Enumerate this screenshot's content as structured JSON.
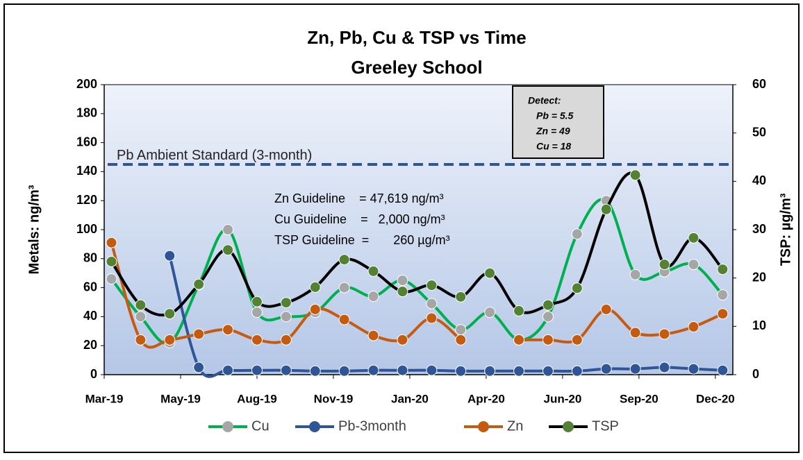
{
  "chart_data": {
    "type": "line",
    "title": "Zn, Pb, Cu & TSP vs Time",
    "subtitle": "Greeley School",
    "y_label": "Metals:  ng/m³",
    "y2_label": "TSP:  µg/m³",
    "x": [
      0.25,
      1.25,
      2.25,
      3.25,
      4.25,
      5.25,
      6.25,
      7.25,
      8.25,
      9.25,
      10.25,
      11.25,
      12.25,
      13.25,
      14.25,
      15.25,
      16.25,
      17.25,
      18.25,
      19.25,
      20.25,
      21.25
    ],
    "xlim": [
      0,
      21.6
    ],
    "xticks": [
      {
        "value": 0,
        "label": "Mar-19"
      },
      {
        "value": 2.625,
        "label": "May-19"
      },
      {
        "value": 5.25,
        "label": "Aug-19"
      },
      {
        "value": 7.875,
        "label": "Nov-19"
      },
      {
        "value": 10.5,
        "label": "Jan-20"
      },
      {
        "value": 13.125,
        "label": "Apr-20"
      },
      {
        "value": 15.75,
        "label": "Jun-20"
      },
      {
        "value": 18.375,
        "label": "Sep-20"
      },
      {
        "value": 21,
        "label": "Dec-20"
      }
    ],
    "ylim": [
      0,
      200
    ],
    "yticks": [
      0,
      20,
      40,
      60,
      80,
      100,
      120,
      140,
      160,
      180,
      200
    ],
    "y2lim": [
      0,
      60
    ],
    "y2ticks": [
      0,
      10,
      20,
      30,
      40,
      50,
      60
    ],
    "smooth": true,
    "series": [
      {
        "name": "Cu",
        "color": "#00b050",
        "marker_color": "#a6a6a6",
        "values": [
          66,
          40,
          22,
          62,
          100,
          43,
          40,
          43,
          60,
          54,
          65,
          49,
          31,
          43,
          24,
          40,
          97,
          120,
          69,
          71,
          76,
          55
        ]
      },
      {
        "name": "Pb-3month",
        "color": "#2f5597",
        "marker_color": "#2f5597",
        "values": [
          null,
          null,
          82,
          5,
          3,
          3,
          3,
          2.5,
          2.5,
          3,
          3,
          3,
          2.5,
          2.5,
          2.5,
          2.5,
          2.5,
          4,
          4,
          5,
          4,
          3
        ]
      },
      {
        "name": "Zn",
        "color": "#c55a11",
        "marker_color": "#c55a11",
        "values": [
          91,
          24,
          24,
          28,
          31,
          24,
          24,
          45,
          38,
          27,
          24,
          39,
          24,
          null,
          24,
          24,
          24,
          45,
          29,
          28,
          33,
          42
        ]
      },
      {
        "name": "TSP",
        "color": "#000000",
        "marker_color": "#548235",
        "axis": "y2",
        "values": [
          23.4,
          14.4,
          12.6,
          18.7,
          25.8,
          15.1,
          14.9,
          18.1,
          23.8,
          21.4,
          17.2,
          18.5,
          16.1,
          21.0,
          13.2,
          14.4,
          17.9,
          34.2,
          41.3,
          22.8,
          28.3,
          21.8
        ]
      }
    ],
    "reference_line": {
      "value": 145,
      "label": "Pb Ambient Standard (3-month)",
      "color": "#2f5597"
    },
    "annotations": [
      "Zn Guideline    = 47,619 ng/m³",
      "Cu Guideline    =   2,000 ng/m³",
      "TSP Guideline  =       260 µg/m³"
    ],
    "detect_box": [
      "Detect:",
      "Pb = 5.5",
      "Zn = 49",
      "Cu = 18"
    ],
    "legend": "bottom"
  }
}
